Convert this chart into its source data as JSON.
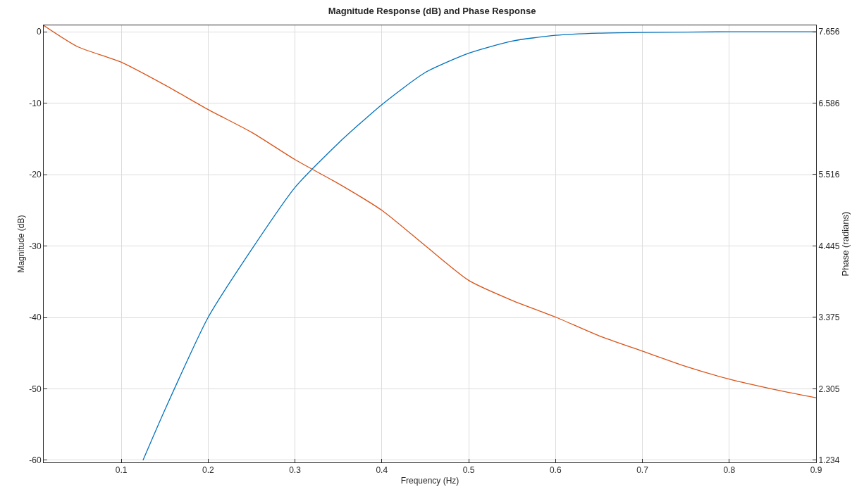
{
  "chart_data": {
    "type": "line",
    "title": "Magnitude Response (dB) and Phase Response",
    "xlabel": "Frequency (Hz)",
    "ylabel": "Magnitude (dB)",
    "y2label": "Phase (radians)",
    "xlim": [
      0.0107,
      0.9
    ],
    "xticks": [
      0.1,
      0.2,
      0.3,
      0.4,
      0.5,
      0.6,
      0.7,
      0.8,
      0.9
    ],
    "ylim": [
      -60.3,
      0.9
    ],
    "yticks": [
      -60,
      -50,
      -40,
      -30,
      -20,
      -10,
      0
    ],
    "y2lim": [
      1.202,
      7.752
    ],
    "y2ticks": [
      1.234,
      2.305,
      3.375,
      4.445,
      5.516,
      6.586,
      7.656
    ],
    "grid": true,
    "series": [
      {
        "color": "#0072bd",
        "x": [
          0.125,
          0.15,
          0.2,
          0.25,
          0.3,
          0.35,
          0.4,
          0.45,
          0.5,
          0.55,
          0.6,
          0.65,
          0.7,
          0.8,
          0.9
        ],
        "values": [
          -60,
          -53,
          -40,
          -30.5,
          -21.8,
          -15.6,
          -10.2,
          -5.7,
          -3,
          -1.3,
          -0.5,
          -0.2,
          -0.1,
          0,
          0
        ]
      },
      {
        "color": "#d95319",
        "axis": "y2",
        "x": [
          0.0107,
          0.05,
          0.1,
          0.15,
          0.2,
          0.25,
          0.3,
          0.35,
          0.4,
          0.45,
          0.5,
          0.55,
          0.6,
          0.65,
          0.7,
          0.75,
          0.8,
          0.85,
          0.9
        ],
        "values": [
          7.75,
          7.43,
          7.2,
          6.86,
          6.49,
          6.15,
          5.74,
          5.38,
          4.98,
          4.45,
          3.93,
          3.63,
          3.38,
          3.1,
          2.87,
          2.64,
          2.45,
          2.3,
          2.17
        ]
      }
    ]
  }
}
